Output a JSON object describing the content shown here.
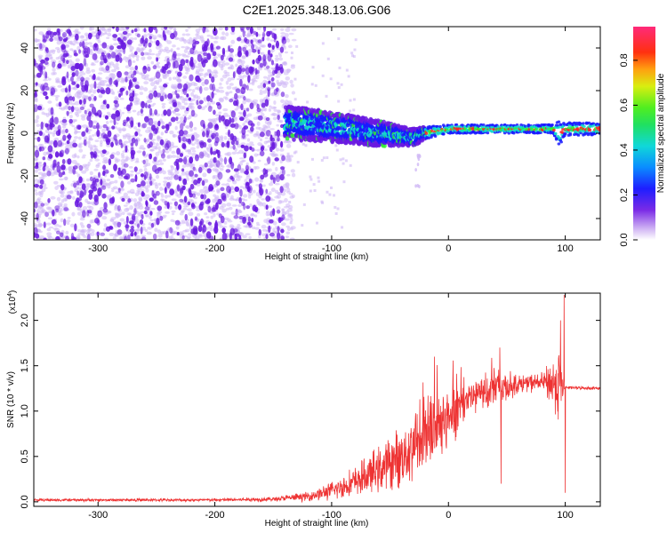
{
  "title": "C2E1.2025.348.13.06.G06",
  "colors": {
    "snr_line": "#ee3333",
    "scatter_purple": "#6a1ae0",
    "scatter_light": "#cfb8f5",
    "band_blue": "#1a1aff",
    "band_cyan": "#11d9c9",
    "band_green": "#33ee33",
    "band_red": "#ff2222"
  },
  "chart_data": [
    {
      "type": "heatmap",
      "title": "C2E1.2025.348.13.06.G06",
      "xlabel": "Height of straight line (km)",
      "ylabel": "Frequency (Hz)",
      "xlim": [
        -355,
        130
      ],
      "ylim": [
        -50,
        50
      ],
      "x_ticks": [
        -300,
        -200,
        -100,
        0,
        100
      ],
      "x_tick_labels": [
        "-300",
        "-200",
        "-100",
        "0",
        "100"
      ],
      "y_ticks": [
        -40,
        -20,
        0,
        20,
        40
      ],
      "y_tick_labels": [
        "-40",
        "-20",
        "0",
        "20",
        "40"
      ],
      "noise_region_x": [
        -355,
        -140
      ],
      "signal_band": {
        "x": [
          -140,
          -100,
          -60,
          -30,
          -20,
          0,
          40,
          90,
          95,
          100,
          130
        ],
        "center_hz": [
          5,
          3,
          0,
          -2,
          0,
          2,
          2,
          2,
          0,
          2,
          2
        ],
        "halfwidth_hz": [
          8,
          7,
          6,
          4,
          3,
          2,
          2,
          2,
          6,
          3,
          3
        ]
      },
      "colorbar": {
        "label": "Normalized spectral amplitude",
        "range": [
          0,
          0.95
        ],
        "ticks": [
          0,
          0.2,
          0.4,
          0.6,
          0.8
        ],
        "tick_labels": [
          "0.0",
          "0.2",
          "0.4",
          "0.6",
          "0.8"
        ]
      }
    },
    {
      "type": "line",
      "xlabel": "Height of straight line (km)",
      "ylabel": "SNR (10 * v/v)",
      "exponent_label": "(x10",
      "exponent_power": "4",
      "exponent_close": ")",
      "xlim": [
        -355,
        130
      ],
      "ylim": [
        -0.05,
        2.3
      ],
      "x_ticks": [
        -300,
        -200,
        -100,
        0,
        100
      ],
      "x_tick_labels": [
        "-300",
        "-200",
        "-100",
        "0",
        "100"
      ],
      "y_ticks": [
        0,
        0.5,
        1.0,
        1.5,
        2.0
      ],
      "y_tick_labels": [
        "0.0",
        "0.5",
        "1.0",
        "1.5",
        "2.0"
      ],
      "series": [
        {
          "name": "SNR",
          "x": [
            -355,
            -200,
            -150,
            -120,
            -100,
            -80,
            -60,
            -40,
            -20,
            0,
            20,
            40,
            60,
            80,
            95,
            100,
            130
          ],
          "baseline": [
            0.02,
            0.02,
            0.03,
            0.06,
            0.12,
            0.22,
            0.35,
            0.5,
            0.75,
            0.95,
            1.15,
            1.25,
            1.3,
            1.32,
            1.3,
            1.26,
            1.25
          ],
          "noise_amp": [
            0.02,
            0.02,
            0.03,
            0.06,
            0.12,
            0.2,
            0.3,
            0.4,
            0.55,
            0.45,
            0.25,
            0.3,
            0.12,
            0.12,
            0.5,
            0.02,
            0.02
          ]
        }
      ],
      "spikes": [
        {
          "x": -12,
          "y": 1.6
        },
        {
          "x": 44,
          "y": 1.7
        },
        {
          "x": 45,
          "y": 0.2
        },
        {
          "x": 96,
          "y": 2.0
        },
        {
          "x": 99,
          "y": 2.28
        },
        {
          "x": 100,
          "y": 0.1
        }
      ]
    }
  ]
}
